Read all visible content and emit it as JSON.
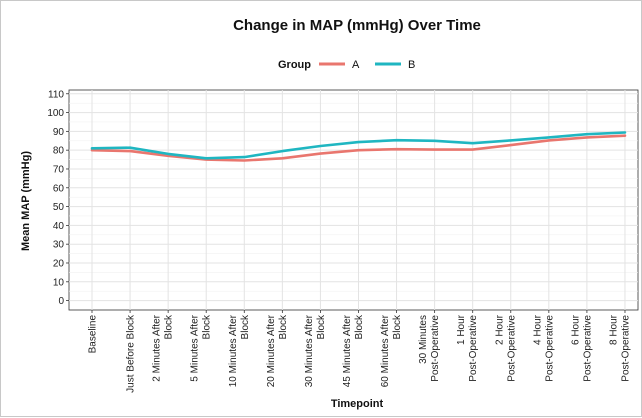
{
  "chart_data": {
    "type": "line",
    "title": "Change in MAP (mmHg) Over Time",
    "xlabel": "Timepoint",
    "ylabel": "Mean MAP (mmHg)",
    "legend_title": "Group",
    "legend_position": "top",
    "grid": true,
    "ylim": [
      -5,
      112
    ],
    "yticks": [
      0,
      10,
      20,
      30,
      40,
      50,
      60,
      70,
      80,
      90,
      100,
      110
    ],
    "categories": [
      [
        "Baseline"
      ],
      [
        "Just Before Block"
      ],
      [
        "2 Minutes After",
        "Block"
      ],
      [
        "5 Minutes After",
        "Block"
      ],
      [
        "10 Minutes After",
        "Block"
      ],
      [
        "20 Minutes After",
        "Block"
      ],
      [
        "30 Minutes After",
        "Block"
      ],
      [
        "45 Minutes After",
        "Block"
      ],
      [
        "60 Minutes After",
        "Block"
      ],
      [
        "30 Minutes",
        "Post-Operative"
      ],
      [
        "1 Hour",
        "Post-Operative"
      ],
      [
        "2 Hour",
        "Post-Operative"
      ],
      [
        "4 Hour",
        "Post-Operative"
      ],
      [
        "6 Hour",
        "Post-Operative"
      ],
      [
        "8 Hour",
        "Post-Operative"
      ]
    ],
    "series": [
      {
        "name": "A",
        "color": "#E9766E",
        "values": [
          80,
          79.5,
          77,
          75,
          74.5,
          75.7,
          78.2,
          80,
          80.5,
          80.3,
          80.3,
          82.7,
          85.2,
          86.8,
          87.7
        ]
      },
      {
        "name": "B",
        "color": "#1FB6C1",
        "values": [
          81,
          81.3,
          78,
          75.7,
          76.3,
          79.5,
          82.2,
          84.3,
          85.3,
          85,
          83.7,
          85.2,
          86.8,
          88.5,
          89.4
        ]
      }
    ]
  }
}
